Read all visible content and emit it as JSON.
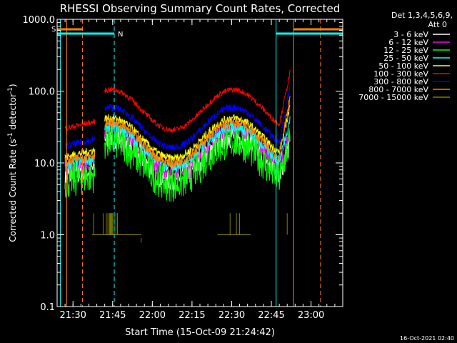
{
  "chart_data": {
    "type": "line",
    "title": "RHESSI Observing Summary Count Rates, Corrected",
    "xlabel": "Start Time (15-Oct-09 21:24:42)",
    "ylabel_main": "Corrected Count Rate (s",
    "ylabel_sup1": "-1",
    "ylabel_mid": " detector",
    "ylabel_sup2": "-1",
    "ylabel_end": ")",
    "x_range_minutes": [
      21.4,
      23.2
    ],
    "yscale": "log",
    "ylim": [
      0.1,
      1000
    ],
    "x_ticks": [
      {
        "label": "21:30",
        "t": 21.5
      },
      {
        "label": "21:45",
        "t": 21.75
      },
      {
        "label": "22:00",
        "t": 22.0
      },
      {
        "label": "22:15",
        "t": 22.25
      },
      {
        "label": "22:30",
        "t": 22.5
      },
      {
        "label": "22:45",
        "t": 22.75
      },
      {
        "label": "23:00",
        "t": 23.0
      }
    ],
    "y_ticks": [
      {
        "label": "0.1",
        "v": 0.1
      },
      {
        "label": "1.0",
        "v": 1
      },
      {
        "label": "10.0",
        "v": 10
      },
      {
        "label": "100.0",
        "v": 100
      },
      {
        "label": "1000.0",
        "v": 1000
      }
    ],
    "legend_header": [
      "Det 1,3,4,5,6,9,",
      "Att 0"
    ],
    "series": [
      {
        "name": "3 - 6 keV",
        "color": "#ffffff",
        "base": 12,
        "amp": 0.3,
        "noise": 0.18
      },
      {
        "name": "6 - 12 keV",
        "color": "#ff00ff",
        "base": 15,
        "amp": 0.3,
        "noise": 0.1
      },
      {
        "name": "12 - 25 keV",
        "color": "#00ff00",
        "base": 10,
        "amp": 0.3,
        "noise": 0.25
      },
      {
        "name": "25 - 50 keV",
        "color": "#00ffff",
        "base": 17,
        "amp": 0.28,
        "noise": 0.08
      },
      {
        "name": "50 - 100 keV",
        "color": "#ffff00",
        "base": 22,
        "amp": 0.28,
        "noise": 0.06
      },
      {
        "name": "100 - 300 keV",
        "color": "#ff0000",
        "base": 55,
        "amp": 0.28,
        "noise": 0.04
      },
      {
        "name": "300 - 800 keV",
        "color": "#0000ff",
        "base": 31,
        "amp": 0.28,
        "noise": 0.05
      },
      {
        "name": "800 - 7000 keV",
        "color": "#ff8000",
        "base": 19,
        "amp": 0.28,
        "noise": 0.07
      },
      {
        "name": "7000 - 15000 keV",
        "color": "#808000",
        "base": 1,
        "amp": 0,
        "noise": 0
      }
    ],
    "markers": [
      {
        "label": "S",
        "color": "#ff8000"
      },
      {
        "label": "N",
        "color": "#00ffff"
      }
    ],
    "footer_date": "16-Oct-2021 02:40"
  }
}
